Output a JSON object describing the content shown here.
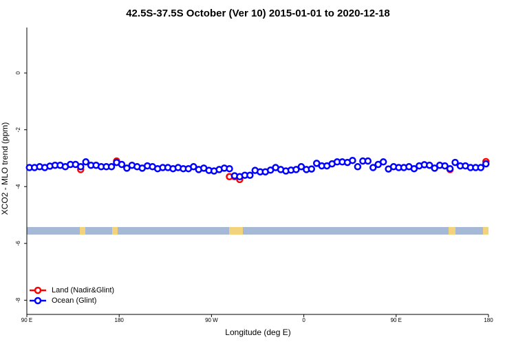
{
  "chart_data": {
    "type": "scatter",
    "title": "42.5S-37.5S October (Ver 10)   2015-01-01 to 2020-12-18",
    "x_label": "Longitude (deg E)",
    "y_label": "XCO2 - MLO trend (ppm)",
    "xlim": [
      90,
      540
    ],
    "ylim": [
      -8.5,
      1.6
    ],
    "xticks": [
      {
        "value": 90,
        "label": "90 E"
      },
      180,
      {
        "value": 270,
        "label": "90 W"
      },
      {
        "value": 360,
        "label": "0"
      },
      {
        "value": 450,
        "label": "90 E"
      },
      {
        "value": 540,
        "label": "180"
      }
    ],
    "yticks": [
      -8,
      -6,
      -4,
      -2,
      0
    ],
    "legend": "bottom-left",
    "series": [
      {
        "name": "Land (Nadir&Glint)",
        "color": "#ff0000",
        "x": [
          142.5,
          177.5,
          287.5,
          292.5,
          297.5,
          502.5,
          537.5
        ],
        "values": [
          -3.4,
          -3.1,
          -3.65,
          -3.65,
          -3.75,
          -3.4,
          -3.12
        ]
      },
      {
        "name": "Ocean (Glint)",
        "color": "#0000ff",
        "x": [
          92.5,
          97.5,
          102.5,
          107.5,
          112.5,
          117.5,
          122.5,
          127.5,
          132.5,
          137.5,
          142.5,
          147.5,
          152.5,
          157.5,
          162.5,
          167.5,
          172.5,
          177.5,
          182.5,
          187.5,
          192.5,
          197.5,
          202.5,
          207.5,
          212.5,
          217.5,
          222.5,
          227.5,
          232.5,
          237.5,
          242.5,
          247.5,
          252.5,
          257.5,
          262.5,
          267.5,
          272.5,
          277.5,
          282.5,
          287.5,
          292.5,
          297.5,
          302.5,
          307.5,
          312.5,
          317.5,
          322.5,
          327.5,
          332.5,
          337.5,
          342.5,
          347.5,
          352.5,
          357.5,
          362.5,
          367.5,
          372.5,
          377.5,
          382.5,
          387.5,
          392.5,
          397.5,
          402.5,
          407.5,
          412.5,
          417.5,
          422.5,
          427.5,
          432.5,
          437.5,
          442.5,
          447.5,
          452.5,
          457.5,
          462.5,
          467.5,
          472.5,
          477.5,
          482.5,
          487.5,
          492.5,
          497.5,
          502.5,
          507.5,
          512.5,
          517.5,
          522.5,
          527.5,
          532.5,
          537.5
        ],
        "values": [
          -3.33,
          -3.33,
          -3.3,
          -3.33,
          -3.28,
          -3.25,
          -3.25,
          -3.3,
          -3.22,
          -3.22,
          -3.3,
          -3.13,
          -3.25,
          -3.25,
          -3.3,
          -3.3,
          -3.3,
          -3.15,
          -3.22,
          -3.35,
          -3.25,
          -3.3,
          -3.35,
          -3.27,
          -3.3,
          -3.37,
          -3.33,
          -3.33,
          -3.37,
          -3.33,
          -3.37,
          -3.37,
          -3.3,
          -3.4,
          -3.35,
          -3.43,
          -3.45,
          -3.4,
          -3.35,
          -3.37,
          -3.62,
          -3.65,
          -3.6,
          -3.6,
          -3.43,
          -3.48,
          -3.48,
          -3.42,
          -3.33,
          -3.4,
          -3.45,
          -3.42,
          -3.4,
          -3.3,
          -3.4,
          -3.38,
          -3.18,
          -3.27,
          -3.27,
          -3.2,
          -3.13,
          -3.13,
          -3.15,
          -3.08,
          -3.3,
          -3.1,
          -3.1,
          -3.33,
          -3.22,
          -3.13,
          -3.38,
          -3.3,
          -3.33,
          -3.33,
          -3.3,
          -3.37,
          -3.27,
          -3.23,
          -3.25,
          -3.35,
          -3.25,
          -3.27,
          -3.37,
          -3.15,
          -3.27,
          -3.27,
          -3.33,
          -3.33,
          -3.33,
          -3.2
        ]
      }
    ]
  }
}
